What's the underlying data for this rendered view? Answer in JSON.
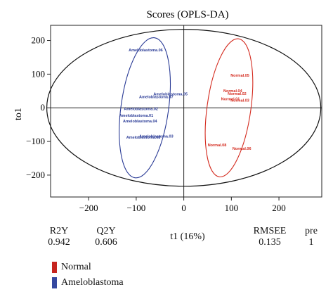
{
  "chart_data": {
    "type": "scatter",
    "title": "Scores (OPLS-DA)",
    "xlabel": "t1 (16%)",
    "ylabel": "to1",
    "xlim": [
      -280,
      290
    ],
    "ylim": [
      -265,
      245
    ],
    "xticks": [
      -200,
      -100,
      0,
      100,
      200
    ],
    "yticks": [
      -200,
      -100,
      0,
      100,
      200
    ],
    "reference_lines": {
      "x": 0,
      "y": 0
    },
    "grid": false,
    "ellipse": {
      "center": [
        0,
        0
      ],
      "rx": 288,
      "ry": 233
    },
    "series": [
      {
        "name": "Normal",
        "color": "#d42a1e",
        "points": [
          {
            "label": "Normal.05",
            "x": 118,
            "y": 92
          },
          {
            "label": "Normal.04",
            "x": 103,
            "y": 46
          },
          {
            "label": "Normal.02",
            "x": 112,
            "y": 38
          },
          {
            "label": "Normal.01",
            "x": 98,
            "y": 22
          },
          {
            "label": "Normal.03",
            "x": 118,
            "y": 18
          },
          {
            "label": "Normal.08",
            "x": 70,
            "y": -115
          },
          {
            "label": "Normal.06",
            "x": 122,
            "y": -125
          }
        ],
        "confidence_ellipse": {
          "cx": 95,
          "cy": 0,
          "rx": 46,
          "ry": 207,
          "angle": 8
        }
      },
      {
        "name": "Ameloblastoma",
        "color": "#2a3b96",
        "points": [
          {
            "label": "Ameloblastoma.06",
            "x": -80,
            "y": 168
          },
          {
            "label": "Ameloblastoma.05",
            "x": -28,
            "y": 37
          },
          {
            "label": "Ameloblastoma.07",
            "x": -58,
            "y": 29
          },
          {
            "label": "Ameloblastoma.02",
            "x": -90,
            "y": -7
          },
          {
            "label": "Ameloblastoma.01",
            "x": -100,
            "y": -27
          },
          {
            "label": "Ameloblastoma.04",
            "x": -92,
            "y": -43
          },
          {
            "label": "Ameloblastoma.03",
            "x": -58,
            "y": -88
          },
          {
            "label": "Ameloblastoma.08",
            "x": -85,
            "y": -92
          }
        ],
        "confidence_ellipse": {
          "cx": -82,
          "cy": 0,
          "rx": 50,
          "ry": 210,
          "angle": 8
        }
      }
    ]
  },
  "stats": {
    "r2y": {
      "label": "R2Y",
      "value": "0.942"
    },
    "q2y": {
      "label": "Q2Y",
      "value": "0.606"
    },
    "rmsee": {
      "label": "RMSEE",
      "value": "0.135"
    },
    "pre": {
      "label": "pre",
      "value": "1"
    }
  },
  "legend": {
    "items": [
      {
        "label": "Normal",
        "color": "#c62520"
      },
      {
        "label": "Ameloblastoma",
        "color": "#3548a0"
      }
    ]
  }
}
